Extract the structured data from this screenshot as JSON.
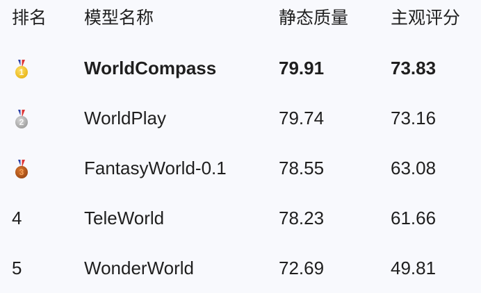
{
  "headers": [
    "排名",
    "模型名称",
    "静态质量",
    "主观评分"
  ],
  "rows": [
    {
      "rank": "1",
      "medal": "gold-medal",
      "name": "WorldCompass",
      "static": "79.91",
      "subjective": "73.83",
      "bold": true
    },
    {
      "rank": "2",
      "medal": "silver-medal",
      "name": "WorldPlay",
      "static": "79.74",
      "subjective": "73.16"
    },
    {
      "rank": "3",
      "medal": "bronze-medal",
      "name": "FantasyWorld-0.1",
      "static": "78.55",
      "subjective": "63.08"
    },
    {
      "rank": "4",
      "name": "TeleWorld",
      "static": "78.23",
      "subjective": "61.66"
    },
    {
      "rank": "5",
      "name": "WonderWorld",
      "static": "72.69",
      "subjective": "49.81"
    }
  ],
  "colors": {
    "background": "#f8f9fd",
    "text": "#1f1f1f",
    "gold": "#e0a800",
    "silver": "#8a8a8a",
    "bronze": "#8a3a0c"
  }
}
